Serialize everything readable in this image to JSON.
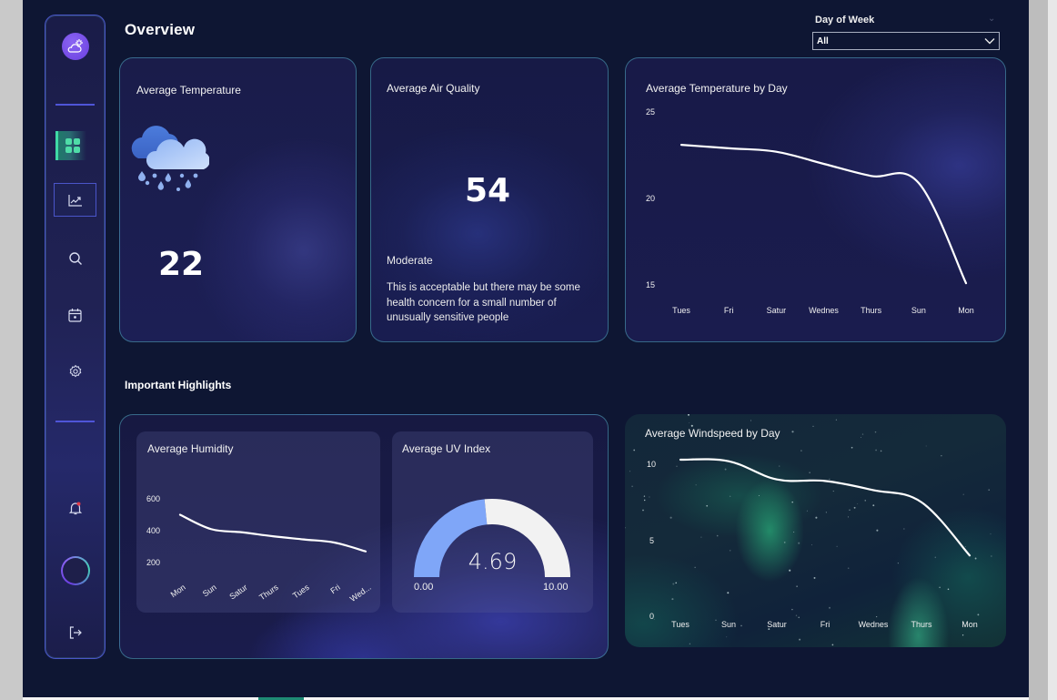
{
  "header": {
    "title": "Overview",
    "filter": {
      "label": "Day of Week",
      "selected": "All"
    }
  },
  "sidebar": {
    "items": [
      {
        "name": "weather-logo",
        "icon": "cloud-sun-icon"
      },
      {
        "name": "dashboard",
        "icon": "grid-icon",
        "active": true
      },
      {
        "name": "analytics",
        "icon": "trend-chart-icon"
      },
      {
        "name": "search",
        "icon": "search-icon"
      },
      {
        "name": "calendar",
        "icon": "calendar-icon"
      },
      {
        "name": "settings",
        "icon": "gear-icon"
      },
      {
        "name": "notifications",
        "icon": "bell-icon",
        "badge": true
      },
      {
        "name": "profile",
        "icon": "avatar-ring"
      },
      {
        "name": "logout",
        "icon": "logout-icon"
      }
    ]
  },
  "cards": {
    "avg_temperature": {
      "title": "Average Temperature",
      "value": "22",
      "icon": "rain-cloud-icon"
    },
    "avg_air_quality": {
      "title": "Average Air Quality",
      "value": "54",
      "status": "Moderate",
      "description": "This is acceptable but there may be some health concern for a small number of unusually sensitive people"
    },
    "highlights_title": "Important Highlights",
    "avg_uv": {
      "title": "Average UV Index",
      "value": "4.69",
      "min": "0.00",
      "max": "10.00"
    }
  },
  "colors": {
    "background": "#0e1633",
    "accent_teal": "#3fd9a6",
    "accent_purple": "#6a3fe0",
    "gauge_fill": "#7fa6f8",
    "gauge_track": "#f2f2f2",
    "line": "#ffffff"
  },
  "chart_data": [
    {
      "type": "line",
      "title": "Average Temperature by Day",
      "categories": [
        "Tues",
        "Fri",
        "Satur",
        "Wednes",
        "Thurs",
        "Sun",
        "Mon"
      ],
      "values": [
        23.1,
        22.9,
        22.7,
        22.0,
        21.3,
        20.9,
        15.1
      ],
      "yticks": [
        "25",
        "20",
        "15"
      ],
      "ylim": [
        15,
        25
      ],
      "grid": false,
      "xlabel": "",
      "ylabel": ""
    },
    {
      "type": "line",
      "title": "Average Humidity",
      "categories": [
        "Mon",
        "Sun",
        "Satur",
        "Thurs",
        "Tues",
        "Fri",
        "Wed..."
      ],
      "values": [
        500,
        410,
        390,
        365,
        345,
        325,
        270
      ],
      "yticks": [
        "600",
        "400",
        "200"
      ],
      "ylim": [
        200,
        600
      ],
      "grid": false,
      "xlabel": "",
      "ylabel": ""
    },
    {
      "type": "gauge",
      "title": "Average UV Index",
      "value": 4.69,
      "min": 0,
      "max": 10
    },
    {
      "type": "line",
      "title": "Average Windspeed by Day",
      "categories": [
        "Tues",
        "Sun",
        "Satur",
        "Fri",
        "Wednes",
        "Thurs",
        "Mon"
      ],
      "values": [
        10.3,
        10.2,
        9.0,
        8.9,
        8.3,
        7.5,
        4.0
      ],
      "yticks": [
        "10",
        "5",
        "0"
      ],
      "ylim": [
        0,
        10
      ],
      "grid": false,
      "xlabel": "",
      "ylabel": ""
    }
  ]
}
